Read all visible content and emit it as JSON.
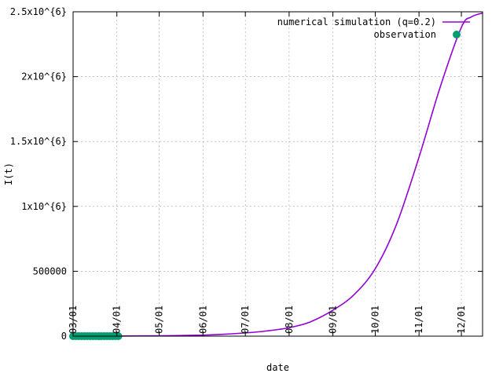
{
  "chart_data": {
    "type": "line",
    "xlabel": "date",
    "ylabel": "I(t)",
    "x_tick_labels": [
      "03/01",
      "04/01",
      "05/01",
      "06/01",
      "07/01",
      "08/01",
      "09/01",
      "10/01",
      "11/01",
      "12/01"
    ],
    "x_tick_dates": [
      "2020-03-01",
      "2020-04-01",
      "2020-05-01",
      "2020-06-01",
      "2020-07-01",
      "2020-08-01",
      "2020-09-01",
      "2020-10-01",
      "2020-11-01",
      "2020-12-01"
    ],
    "xlim": [
      "2020-03-01",
      "2020-12-16"
    ],
    "ylim": [
      0,
      2500000
    ],
    "y_ticks": [
      0,
      500000,
      1000000,
      1500000,
      2000000,
      2500000
    ],
    "y_tick_labels": [
      "0",
      "500000",
      "1x10^{6}",
      "1.5x10^{6}",
      "2x10^{6}",
      "2.5x10^{6}"
    ],
    "grid": true,
    "legend_position": "top-right",
    "series": [
      {
        "name": "numerical simulation (q=0.2)",
        "kind": "line",
        "color": "#9400d3",
        "x": [
          "2020-03-01",
          "2020-04-01",
          "2020-05-01",
          "2020-06-01",
          "2020-06-16",
          "2020-07-01",
          "2020-07-16",
          "2020-08-01",
          "2020-08-16",
          "2020-09-01",
          "2020-09-16",
          "2020-10-01",
          "2020-10-16",
          "2020-11-01",
          "2020-11-16",
          "2020-12-01",
          "2020-12-08",
          "2020-12-16"
        ],
        "y": [
          0,
          1000,
          3000,
          8000,
          15000,
          25000,
          40000,
          65000,
          110000,
          200000,
          320000,
          520000,
          860000,
          1380000,
          1920000,
          2380000,
          2460000,
          2490000
        ]
      },
      {
        "name": "observation",
        "kind": "points",
        "color": "#009e73",
        "x": [
          "2020-03-01",
          "2020-03-03",
          "2020-03-05",
          "2020-03-07",
          "2020-03-09",
          "2020-03-11",
          "2020-03-13",
          "2020-03-15",
          "2020-03-17",
          "2020-03-19",
          "2020-03-21",
          "2020-03-23",
          "2020-03-25",
          "2020-03-27",
          "2020-03-29",
          "2020-03-31",
          "2020-04-02"
        ],
        "y": [
          0,
          0,
          0,
          0,
          0,
          0,
          0,
          0,
          0,
          0,
          0,
          0,
          0,
          0,
          0,
          0,
          0
        ]
      }
    ]
  }
}
